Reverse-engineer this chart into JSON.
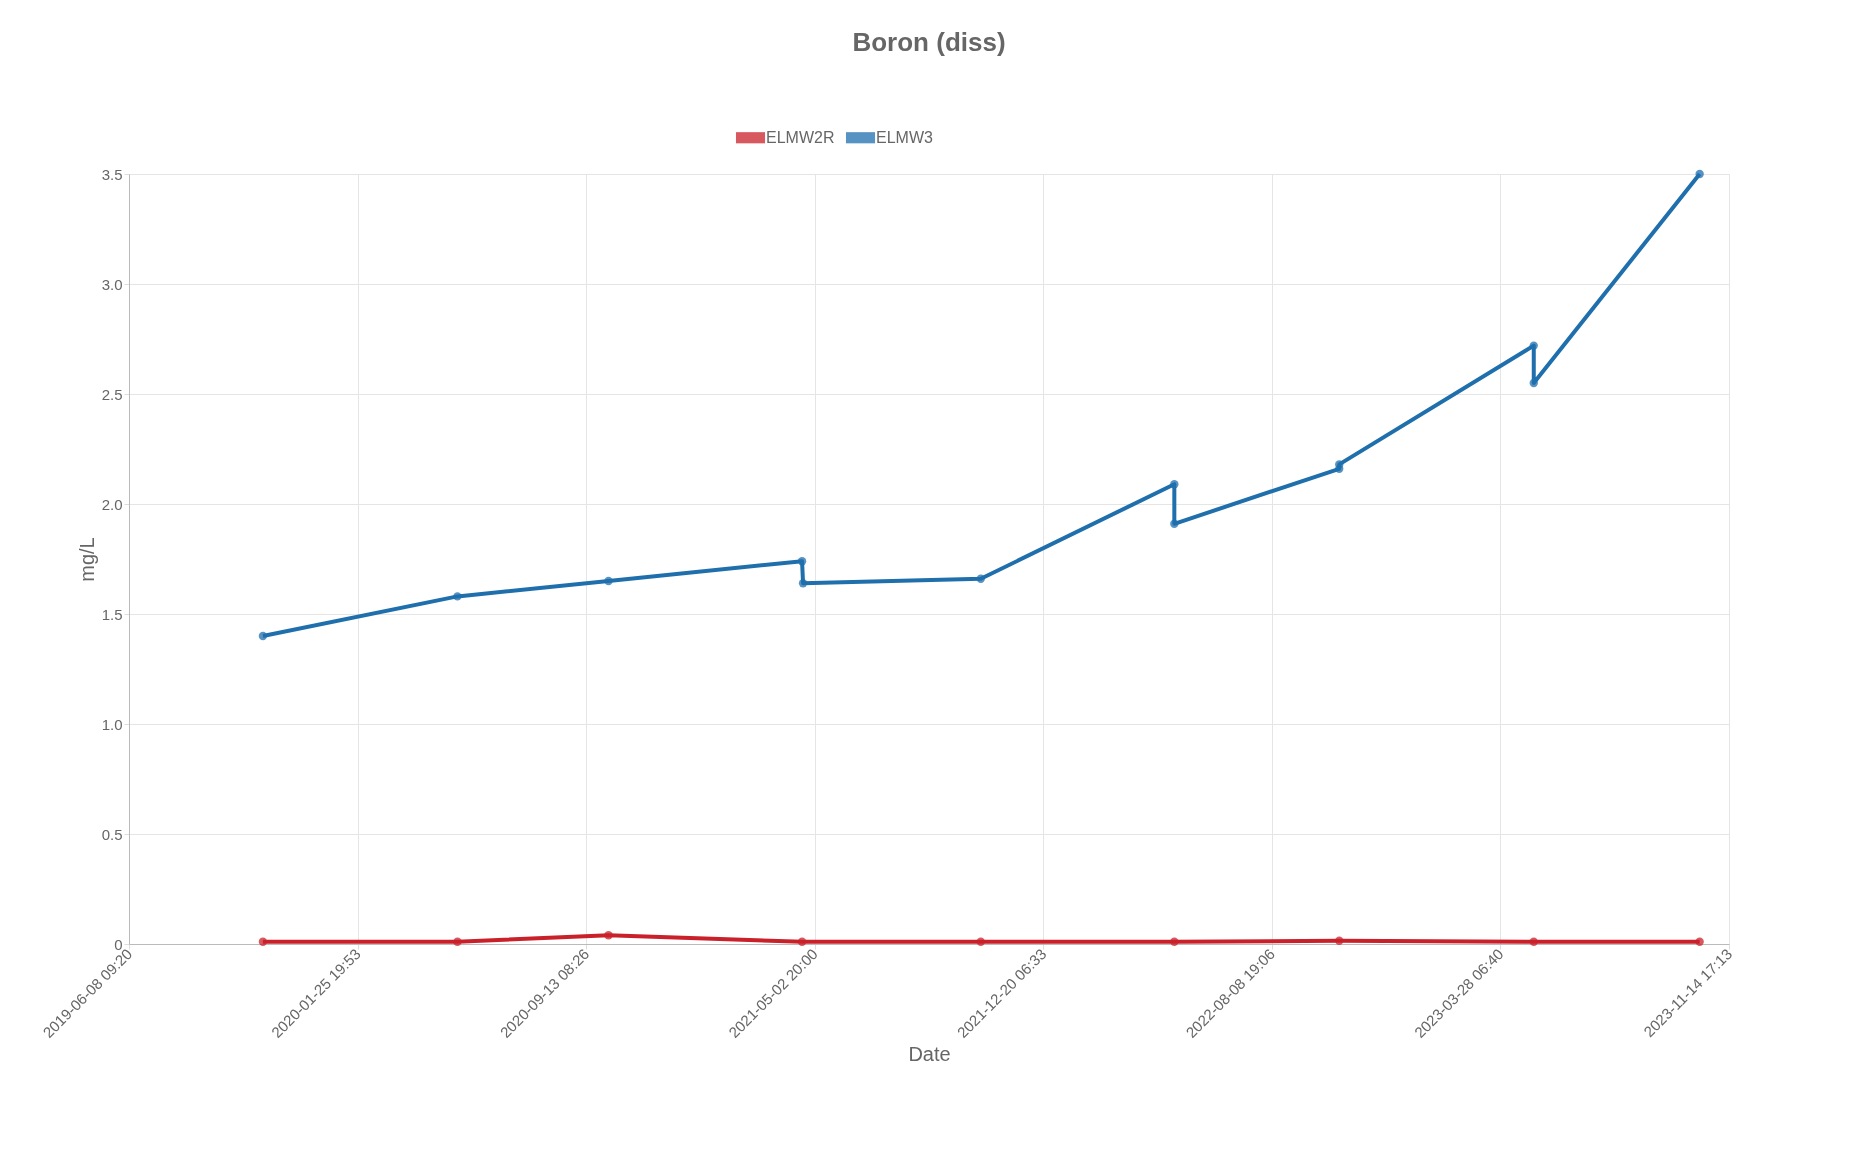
{
  "chart_data": {
    "type": "line",
    "title": "Boron (diss)",
    "xlabel": "Date",
    "ylabel": "mg/L",
    "xlim": [
      "2019-06-08T09:20",
      "2023-11-14T17:13"
    ],
    "xticks": [
      {
        "value": "2019-06-08T09:20",
        "label": "2019-06-08 09:20"
      },
      {
        "value": "2020-01-25T19:53",
        "label": "2020-01-25 19:53"
      },
      {
        "value": "2020-09-13T08:26",
        "label": "2020-09-13 08:26"
      },
      {
        "value": "2021-05-02T20:00",
        "label": "2021-05-02 20:00"
      },
      {
        "value": "2021-12-20T06:33",
        "label": "2021-12-20 06:33"
      },
      {
        "value": "2022-08-08T19:06",
        "label": "2022-08-08 19:06"
      },
      {
        "value": "2023-03-28T06:40",
        "label": "2023-03-28 06:40"
      },
      {
        "value": "2023-11-14T17:13",
        "label": "2023-11-14 17:13"
      }
    ],
    "ylim": [
      0,
      3.5
    ],
    "yticks": [
      0,
      0.5,
      {
        "value": 1,
        "label": "1.0"
      },
      1.5,
      {
        "value": 2,
        "label": "2.0"
      },
      2.5,
      {
        "value": 3,
        "label": "3.0"
      },
      3.5
    ],
    "grid": true,
    "legend": "top",
    "marker": "circle",
    "line_style": "solid",
    "series": [
      {
        "name": "ELMW2R",
        "color": "#c9202a",
        "x": [
          "2019-10-22",
          "2020-05-06",
          "2020-10-06",
          "2021-04-20",
          "2021-10-18",
          "2022-05-02",
          "2022-10-16",
          "2023-05-01",
          "2023-10-16"
        ],
        "values": [
          0.01,
          0.01,
          0.04,
          0.01,
          0.01,
          0.01,
          0.015,
          0.01,
          0.01
        ]
      },
      {
        "name": "ELMW3",
        "color": "#1f6fad",
        "x": [
          "2019-10-22",
          "2020-05-06",
          "2020-10-06",
          "2021-04-20",
          "2021-04-21",
          "2021-10-18",
          "2022-05-02",
          "2022-05-02",
          "2022-10-16",
          "2022-10-16",
          "2023-05-01",
          "2023-05-01",
          "2023-10-16"
        ],
        "values": [
          1.4,
          1.58,
          1.65,
          1.74,
          1.64,
          1.66,
          2.09,
          1.91,
          2.16,
          2.18,
          2.72,
          2.55,
          3.5
        ]
      }
    ]
  }
}
